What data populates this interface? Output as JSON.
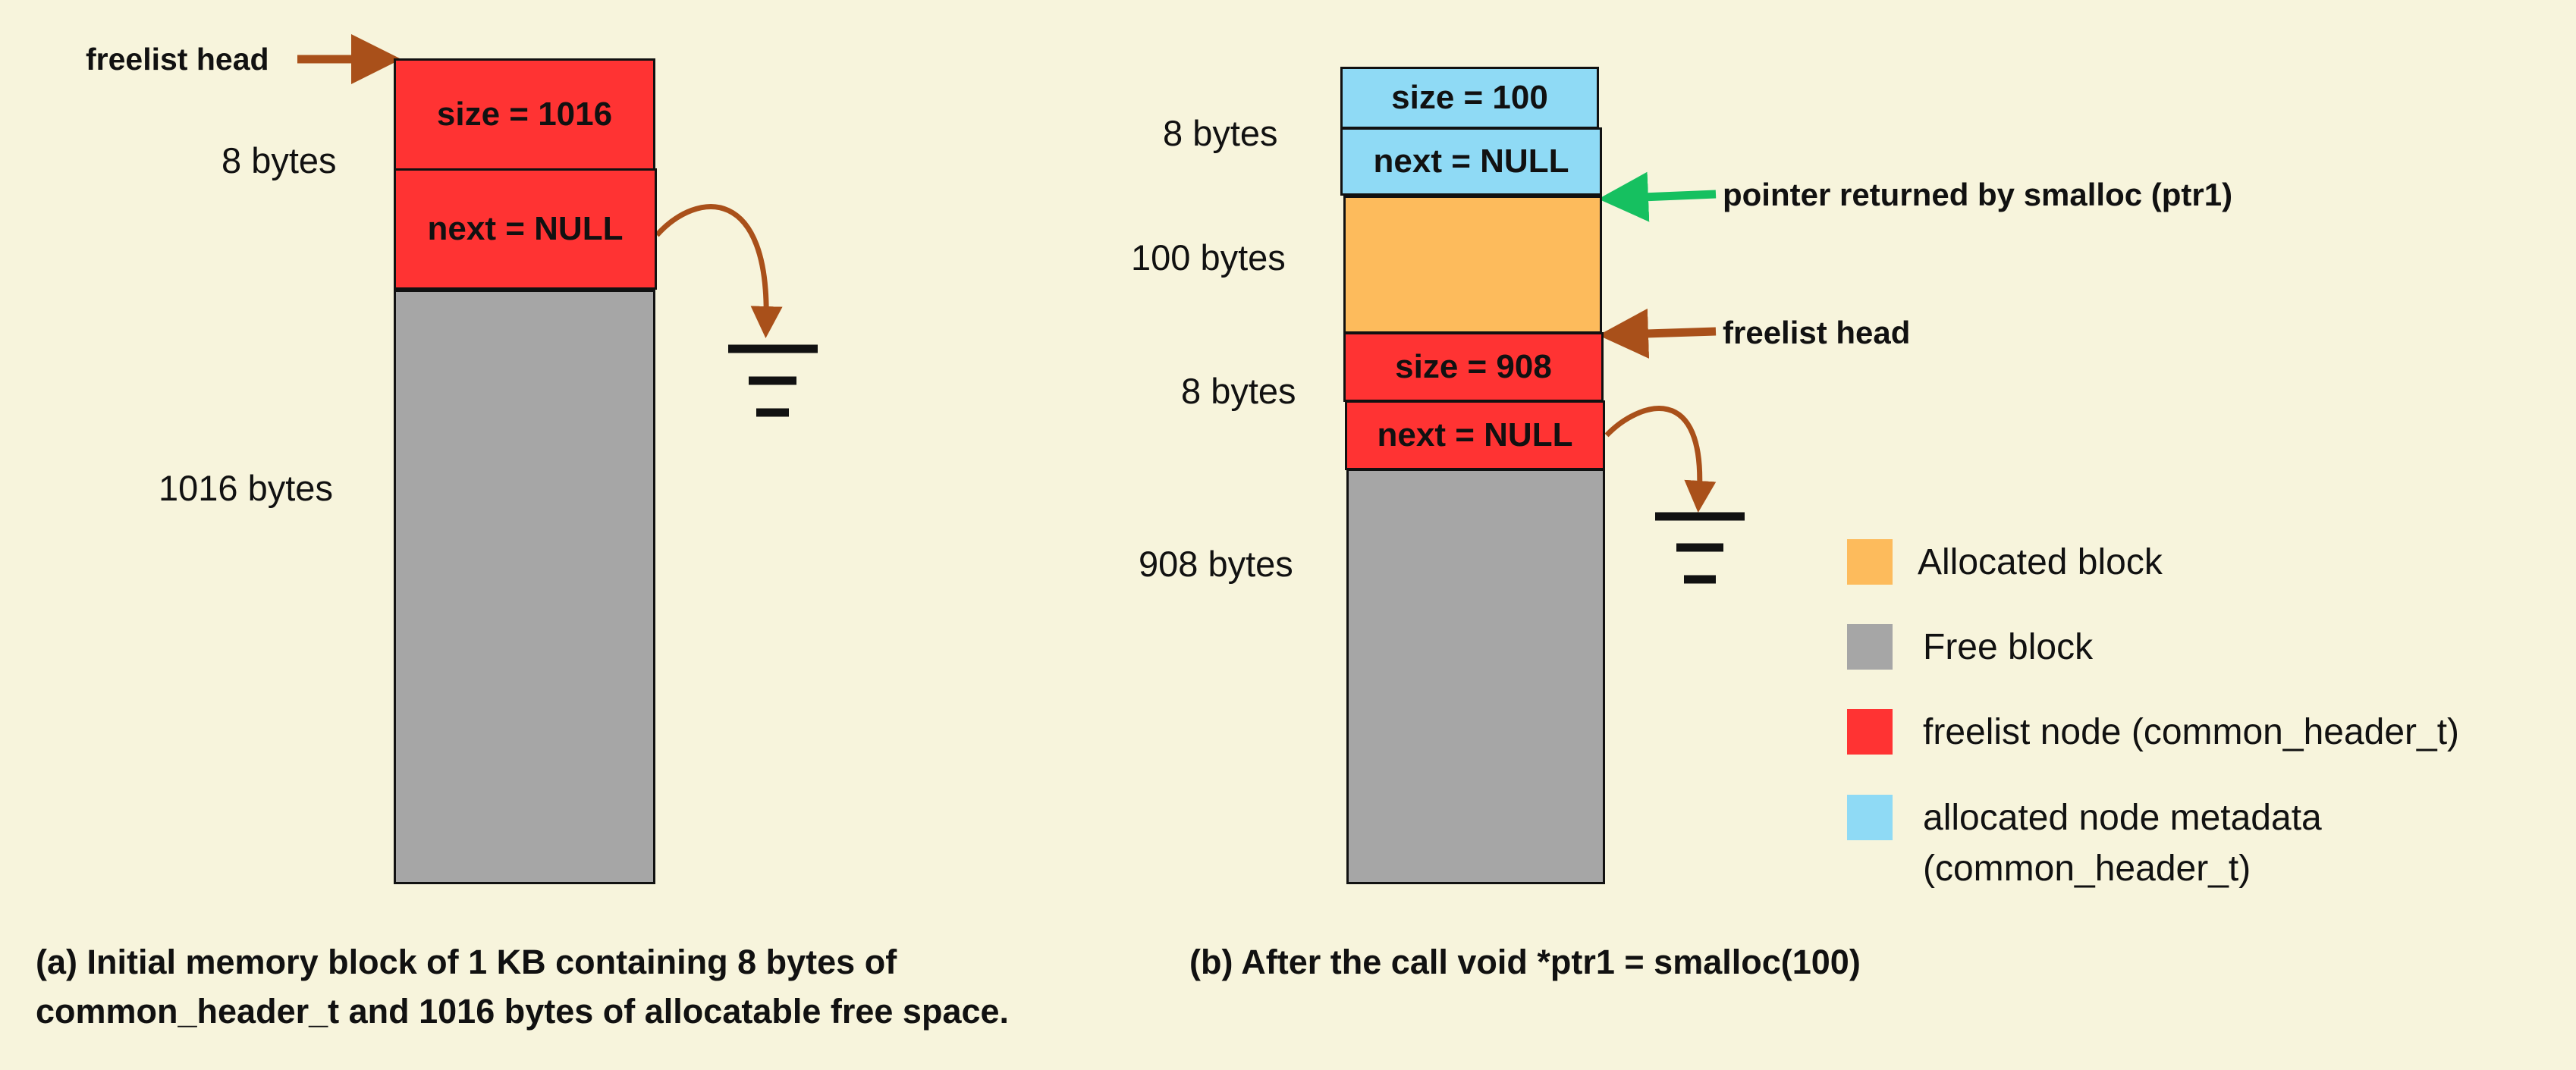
{
  "left": {
    "freelist_head": "freelist head",
    "header_bytes": "8 bytes",
    "size_cell": "size = 1016",
    "next_cell": "next = NULL",
    "free_bytes": "1016 bytes",
    "caption_line1": "(a) Initial memory block of 1 KB containing  8 bytes of",
    "caption_line2": "common_header_t and 1016 bytes of allocatable free space."
  },
  "right": {
    "alloc_header_bytes": "8 bytes",
    "alloc_size_cell": "size = 100",
    "alloc_next_cell": "next = NULL",
    "ptr_label": "pointer returned  by smalloc (ptr1)",
    "alloc_bytes": "100 bytes",
    "freelist_head": "freelist head",
    "free_header_bytes": "8 bytes",
    "free_size_cell": "size = 908",
    "free_next_cell": "next = NULL",
    "free_bytes": "908 bytes",
    "caption": "(b) After the call void *ptr1 = smalloc(100)"
  },
  "legend": {
    "items": [
      {
        "label": "Allocated block",
        "color": "#fdbb5c"
      },
      {
        "label": "Free block",
        "color": "#a6a6a6"
      },
      {
        "label": "freelist node (common_header_t)",
        "color": "#ff3333"
      },
      {
        "label": "allocated node metadata",
        "label2": "(common_header_t)",
        "color": "#8fdaf5"
      }
    ]
  },
  "colors": {
    "background": "#f7f4dc",
    "freelist_node": "#ff3333",
    "free_block": "#a6a6a6",
    "allocated_block": "#fdbb5c",
    "allocated_metadata": "#8fdaf5",
    "head_arrow": "#a9501a",
    "ptr_arrow": "#16c060"
  }
}
